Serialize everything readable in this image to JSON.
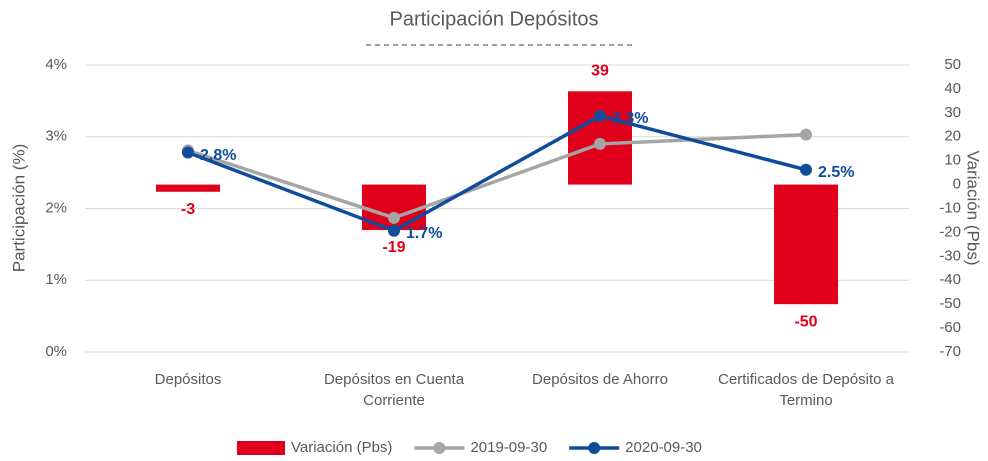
{
  "chart_data": {
    "type": "bar-line",
    "title": "Participación Depósitos",
    "ylabel": "Participación (%)",
    "y2label": "Variación (Pbs)",
    "categories": [
      "Depósitos",
      "Depósitos en Cuenta Corriente",
      "Depósitos de Ahorro",
      "Certificados de Depósito a Termino"
    ],
    "series": [
      {
        "name": "Variación (Pbs)",
        "type": "bar",
        "axis": "y2",
        "color": "#e0001b",
        "values": [
          -3,
          -19,
          39,
          -50
        ]
      },
      {
        "name": "2019-09-30",
        "type": "line",
        "color": "#a5a5a5",
        "values": [
          2.81,
          1.87,
          2.9,
          3.03
        ]
      },
      {
        "name": "2020-09-30",
        "type": "line",
        "color": "#0f4c9a",
        "values": [
          2.78,
          1.69,
          3.29,
          2.54
        ],
        "value_labels": [
          "2.8%",
          "1.7%",
          "3.3%",
          "2.5%"
        ]
      }
    ],
    "ylim": [
      0,
      4
    ],
    "yticks": [
      {
        "value": 0,
        "label": "0%"
      },
      {
        "value": 1,
        "label": "1%"
      },
      {
        "value": 2,
        "label": "2%"
      },
      {
        "value": 3,
        "label": "3%"
      },
      {
        "value": 4,
        "label": "4%"
      }
    ],
    "y2lim": [
      -70,
      50
    ],
    "y2ticks": [
      -70,
      -60,
      -50,
      -40,
      -30,
      -20,
      -10,
      0,
      10,
      20,
      30,
      40,
      50
    ],
    "grid": true,
    "legend": "bottom"
  }
}
